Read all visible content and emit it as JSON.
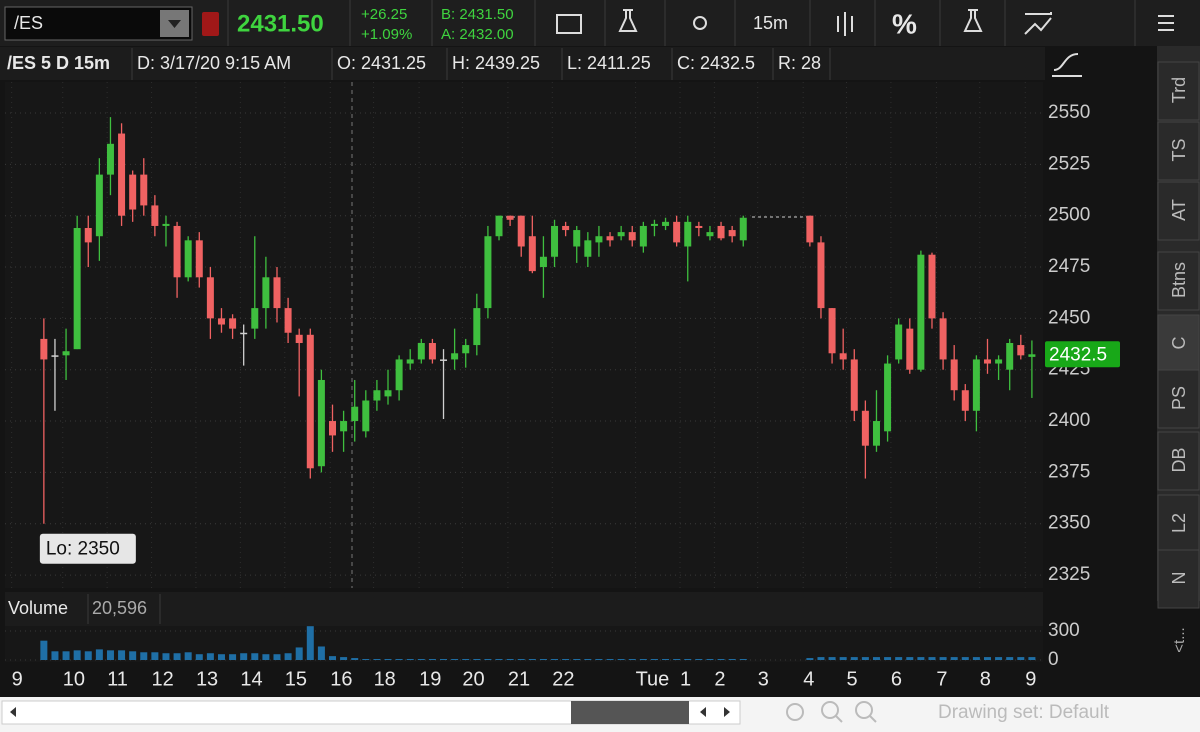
{
  "toolbar": {
    "symbol": "/ES",
    "last": "2431.50",
    "change": "+26.25",
    "change_pct": "+1.09%",
    "bid": "B: 2431.50",
    "ask": "A: 2432.00",
    "interval": "15m",
    "percent": "%"
  },
  "header": {
    "study": "/ES 5 D 15m",
    "date": "D: 3/17/20 9:15 AM",
    "open": "O: 2431.25",
    "high": "H: 2439.25",
    "low": "L: 2411.25",
    "close": "C: 2432.5",
    "range": "R: 28"
  },
  "sidebar": {
    "tabs": [
      "Trd",
      "TS",
      "AT",
      "Btns",
      "C",
      "PS",
      "DB",
      "L2",
      "N"
    ],
    "more": "<t..."
  },
  "footer": {
    "drawing_set": "Drawing set: Default"
  },
  "chart_data": {
    "type": "candlestick",
    "ylim": [
      2318.7,
      2565.1
    ],
    "yticks": [
      2325,
      2350,
      2375,
      2400,
      2425,
      2450,
      2475,
      2500,
      2525,
      2550
    ],
    "xlim": [
      -3.5,
      90
    ],
    "xticks": [
      {
        "value": -2.9,
        "label": "9"
      },
      {
        "value": 1.7,
        "label": "10"
      },
      {
        "value": 5.7,
        "label": "11"
      },
      {
        "value": 9.7,
        "label": "12"
      },
      {
        "value": 13.7,
        "label": "13"
      },
      {
        "value": 17.7,
        "label": "14"
      },
      {
        "value": 21.7,
        "label": "15"
      },
      {
        "value": 25.8,
        "label": "16"
      },
      {
        "value": 29.7,
        "label": "18"
      },
      {
        "value": 33.8,
        "label": "19"
      },
      {
        "value": 37.7,
        "label": "20"
      },
      {
        "value": 41.8,
        "label": "21"
      },
      {
        "value": 45.8,
        "label": "22"
      },
      {
        "value": 53.3,
        "label": "Tue"
      },
      {
        "value": 57.3,
        "label": "1"
      },
      {
        "value": 60.4,
        "label": "2"
      },
      {
        "value": 64.3,
        "label": "3"
      },
      {
        "value": 68.4,
        "label": "4"
      },
      {
        "value": 72.3,
        "label": "5"
      },
      {
        "value": 76.3,
        "label": "6"
      },
      {
        "value": 80.4,
        "label": "7"
      },
      {
        "value": 84.3,
        "label": "8"
      },
      {
        "value": 88.4,
        "label": "9"
      }
    ],
    "grid": true,
    "up_color": "#3fbf3f",
    "down_color": "#f06262",
    "flat_color": "#d0d0d0",
    "low_annotation": "Lo: 2350",
    "last_label": "2432.5",
    "candles": [
      [
        2440,
        2450,
        2350,
        2430
      ],
      [
        2432,
        2440,
        2405,
        2432
      ],
      [
        2432,
        2445,
        2420,
        2434
      ],
      [
        2435,
        2500,
        2435,
        2494
      ],
      [
        2494,
        2500,
        2475,
        2487
      ],
      [
        2490,
        2528,
        2478,
        2520
      ],
      [
        2520,
        2548,
        2510,
        2535
      ],
      [
        2540,
        2545,
        2495,
        2500
      ],
      [
        2520,
        2522,
        2497,
        2503
      ],
      [
        2520,
        2528,
        2500,
        2505
      ],
      [
        2505,
        2510,
        2490,
        2495
      ],
      [
        2495,
        2500,
        2485,
        2496
      ],
      [
        2495,
        2497,
        2460,
        2470
      ],
      [
        2470,
        2490,
        2468,
        2488
      ],
      [
        2488,
        2492,
        2465,
        2470
      ],
      [
        2470,
        2475,
        2440,
        2450
      ],
      [
        2450,
        2455,
        2443,
        2447
      ],
      [
        2450,
        2452,
        2440,
        2445
      ],
      [
        2443,
        2447,
        2427,
        2443
      ],
      [
        2445,
        2490,
        2440,
        2455
      ],
      [
        2455,
        2480,
        2445,
        2470
      ],
      [
        2470,
        2475,
        2448,
        2455
      ],
      [
        2455,
        2460,
        2438,
        2443
      ],
      [
        2442,
        2445,
        2412,
        2438
      ],
      [
        2442,
        2445,
        2372,
        2377
      ],
      [
        2378,
        2425,
        2375,
        2420
      ],
      [
        2400,
        2408,
        2385,
        2393
      ],
      [
        2395,
        2405,
        2385,
        2400
      ],
      [
        2400,
        2420,
        2390,
        2407
      ],
      [
        2395,
        2415,
        2392,
        2410
      ],
      [
        2410,
        2420,
        2405,
        2415
      ],
      [
        2412,
        2425,
        2408,
        2415
      ],
      [
        2415,
        2432,
        2410,
        2430
      ],
      [
        2428,
        2435,
        2425,
        2430
      ],
      [
        2430,
        2440,
        2428,
        2438
      ],
      [
        2438,
        2440,
        2428,
        2430
      ],
      [
        2430,
        2435,
        2401,
        2430
      ],
      [
        2430,
        2445,
        2425,
        2433
      ],
      [
        2433,
        2440,
        2426,
        2437
      ],
      [
        2437,
        2462,
        2432,
        2455
      ],
      [
        2455,
        2495,
        2450,
        2490
      ],
      [
        2490,
        2500,
        2488,
        2500
      ],
      [
        2500,
        2500,
        2495,
        2498
      ],
      [
        2500,
        2500,
        2480,
        2485
      ],
      [
        2490,
        2500,
        2472,
        2473
      ],
      [
        2475,
        2490,
        2460,
        2480
      ],
      [
        2480,
        2498,
        2475,
        2495
      ],
      [
        2495,
        2497,
        2490,
        2493
      ],
      [
        2485,
        2495,
        2477,
        2493
      ],
      [
        2480,
        2492,
        2475,
        2488
      ],
      [
        2487,
        2495,
        2480,
        2490
      ],
      [
        2490,
        2492,
        2485,
        2488
      ],
      [
        2490,
        2495,
        2488,
        2492
      ],
      [
        2492,
        2495,
        2485,
        2488
      ],
      [
        2485,
        2497,
        2482,
        2495
      ],
      [
        2495,
        2498,
        2490,
        2496
      ],
      [
        2495,
        2499,
        2493,
        2497
      ],
      [
        2497,
        2500,
        2485,
        2487
      ],
      [
        2485,
        2500,
        2468,
        2497
      ],
      [
        2495,
        2497,
        2490,
        2494
      ],
      [
        2490,
        2495,
        2488,
        2492
      ],
      [
        2495,
        2497,
        2488,
        2489
      ],
      [
        2493,
        2495,
        2487,
        2490
      ],
      [
        2488,
        2500,
        2485,
        2499
      ],
      null,
      null,
      null,
      null,
      null,
      [
        2500,
        2500,
        2485,
        2487
      ],
      [
        2487,
        2490,
        2450,
        2455
      ],
      [
        2455,
        2455,
        2428,
        2433
      ],
      [
        2433,
        2445,
        2425,
        2430
      ],
      [
        2430,
        2435,
        2400,
        2405
      ],
      [
        2405,
        2410,
        2372,
        2388
      ],
      [
        2388,
        2415,
        2385,
        2400
      ],
      [
        2395,
        2432,
        2390,
        2428
      ],
      [
        2430,
        2450,
        2428,
        2447
      ],
      [
        2445,
        2450,
        2423,
        2425
      ],
      [
        2425,
        2483,
        2424,
        2481
      ],
      [
        2481,
        2482,
        2445,
        2450
      ],
      [
        2450,
        2453,
        2425,
        2430
      ],
      [
        2430,
        2437,
        2410,
        2415
      ],
      [
        2415,
        2418,
        2400,
        2405
      ],
      [
        2405,
        2432,
        2395,
        2430
      ],
      [
        2430,
        2440,
        2423,
        2428
      ],
      [
        2428,
        2432,
        2420,
        2430
      ],
      [
        2425,
        2440,
        2415,
        2438
      ],
      [
        2437,
        2442,
        2430,
        2432
      ],
      [
        2431.25,
        2439.25,
        2411.25,
        2432.5
      ]
    ],
    "volume": {
      "label": "Volume",
      "current": "20,596",
      "color": "#1f6fa6",
      "ylim": [
        0,
        352
      ],
      "yticks": [
        0,
        300
      ],
      "values": [
        200,
        90,
        90,
        100,
        90,
        110,
        100,
        100,
        90,
        80,
        80,
        70,
        70,
        80,
        60,
        70,
        60,
        60,
        70,
        70,
        60,
        60,
        70,
        130,
        350,
        140,
        40,
        30,
        20,
        10,
        10,
        10,
        10,
        10,
        10,
        10,
        10,
        10,
        10,
        10,
        10,
        10,
        10,
        10,
        10,
        10,
        10,
        10,
        10,
        10,
        10,
        10,
        10,
        10,
        10,
        10,
        10,
        10,
        10,
        10,
        10,
        10,
        10,
        10,
        null,
        null,
        null,
        null,
        null,
        20,
        30,
        30,
        30,
        30,
        30,
        30,
        30,
        30,
        30,
        30,
        30,
        30,
        30,
        30,
        30,
        30,
        30,
        30,
        30,
        30
      ]
    }
  }
}
